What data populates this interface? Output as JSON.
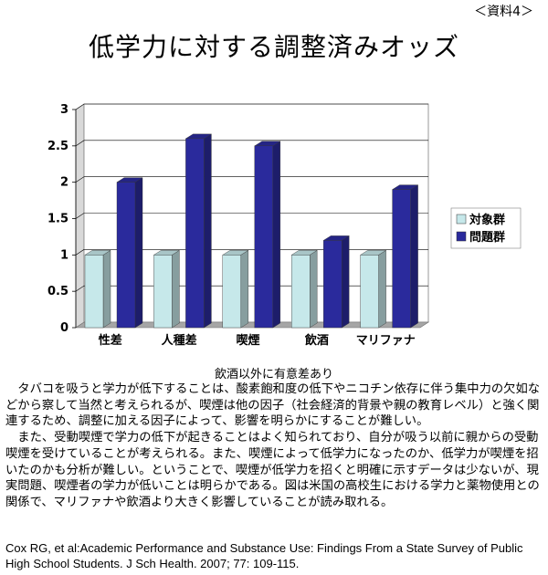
{
  "doc_ref": "＜資料4＞",
  "title": "低学力に対する調整済みオッズ",
  "note": "飲酒以外に有意差あり",
  "paragraphs": [
    "タバコを吸うと学力が低下することは、酸素飽和度の低下やニコチン依存に伴う集中力の欠如などから察して当然と考えられるが、喫煙は他の因子（社会経済的背景や親の教育レベル）と強く関連するため、調整に加える因子によって、影響を明らかにすることが難しい。",
    "また、受動喫煙で学力の低下が起きることはよく知られており、自分が吸う以前に親からの受動喫煙を受けていることが考えられる。また、喫煙によって低学力になったのか、低学力が喫煙を招いたのかも分析が難しい。ということで、喫煙が低学力を招くと明確に示すデータは少ないが、現実問題、喫煙者の学力が低いことは明らかである。図は米国の高校生における学力と薬物使用との関係で、マリファナや飲酒より大きく影響していることが読み取れる。"
  ],
  "citation": "Cox RG, et al:Academic Performance and Substance  Use: Findings From a State Survey of  Public High School Students. J Sch Health. 2007; 77: 109-115.",
  "chart_data": {
    "type": "bar",
    "categories": [
      "性差",
      "人種差",
      "喫煙",
      "飲酒",
      "マリファナ"
    ],
    "series": [
      {
        "name": "対象群",
        "values": [
          1,
          1,
          1,
          1,
          1
        ],
        "color": "#c6e8ea"
      },
      {
        "name": "問題群",
        "values": [
          2.0,
          2.6,
          2.5,
          1.2,
          1.9
        ],
        "color": "#2a2a9c"
      }
    ],
    "ylim": [
      0,
      3
    ],
    "yticks": [
      "0",
      "0.5",
      "1",
      "1.5",
      "2",
      "2.5",
      "3"
    ],
    "grid": true,
    "legend": "right",
    "style": "3d"
  }
}
